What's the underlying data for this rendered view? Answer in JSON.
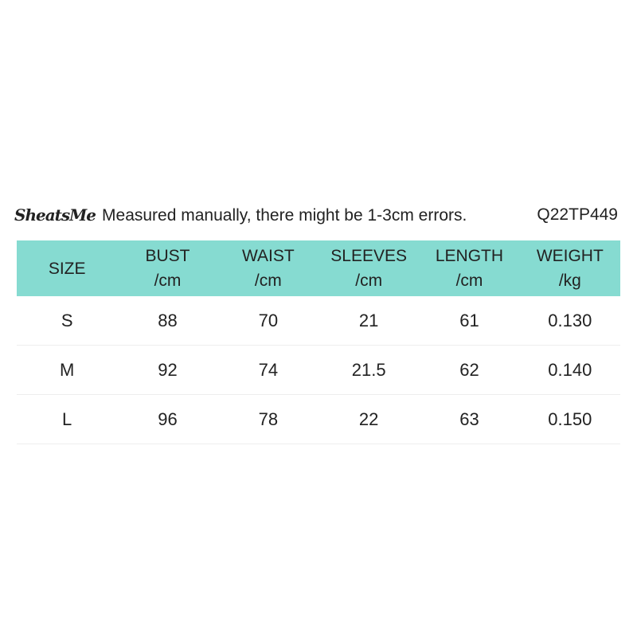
{
  "note": "Measured manually, there might be 1-3cm errors.",
  "logo": "SheatsMe",
  "product_code": "Q22TP449",
  "header_color": "#86dbd1",
  "headers": [
    {
      "name": "SIZE",
      "unit": ""
    },
    {
      "name": "BUST",
      "unit": "/cm"
    },
    {
      "name": "WAIST",
      "unit": "/cm"
    },
    {
      "name": "SLEEVES",
      "unit": "/cm"
    },
    {
      "name": "LENGTH",
      "unit": "/cm"
    },
    {
      "name": "WEIGHT",
      "unit": "/kg"
    }
  ],
  "rows": [
    [
      "S",
      "88",
      "70",
      "21",
      "61",
      "0.130"
    ],
    [
      "M",
      "92",
      "74",
      "21.5",
      "62",
      "0.140"
    ],
    [
      "L",
      "96",
      "78",
      "22",
      "63",
      "0.150"
    ]
  ]
}
